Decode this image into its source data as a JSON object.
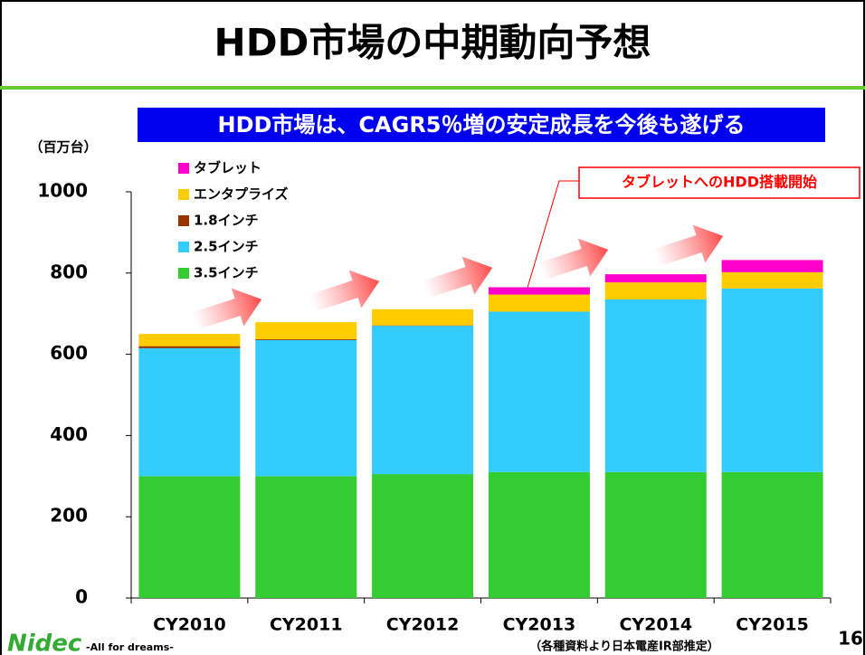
{
  "slide": {
    "title": "HDD市場の中期動向予想",
    "banner": "HDD市場は、CAGR5％増の安定成長を今後も遂げる",
    "source": "（各種資料より日本電産IR部推定）",
    "page": "16",
    "logo": "Nidec",
    "tagline": "-All for dreams-"
  },
  "chart_data": {
    "type": "stacked_bar",
    "y_label": "（百万台）",
    "annotation": "タブレットへのHDD搭載開始",
    "categories": [
      "CY2010",
      "CY2011",
      "CY2012",
      "CY2013",
      "CY2014",
      "CY2015"
    ],
    "series": [
      {
        "name": "3.5インチ",
        "color": "#33cc33",
        "values": [
          300,
          300,
          305,
          310,
          310,
          310
        ]
      },
      {
        "name": "2.5インチ",
        "color": "#33ccff",
        "values": [
          315,
          335,
          365,
          395,
          425,
          452
        ]
      },
      {
        "name": "1.8インチ",
        "color": "#993300",
        "values": [
          5,
          2,
          1,
          0,
          0,
          0
        ]
      },
      {
        "name": "エンタプライズ",
        "color": "#ffcc00",
        "values": [
          30,
          42,
          40,
          42,
          42,
          40
        ]
      },
      {
        "name": "タブレット",
        "color": "#ff00cc",
        "values": [
          0,
          0,
          0,
          18,
          20,
          30
        ]
      }
    ],
    "ylim": [
      0,
      1000
    ],
    "yticks": [
      0,
      200,
      400,
      600,
      800,
      1000
    ],
    "grid": false
  }
}
